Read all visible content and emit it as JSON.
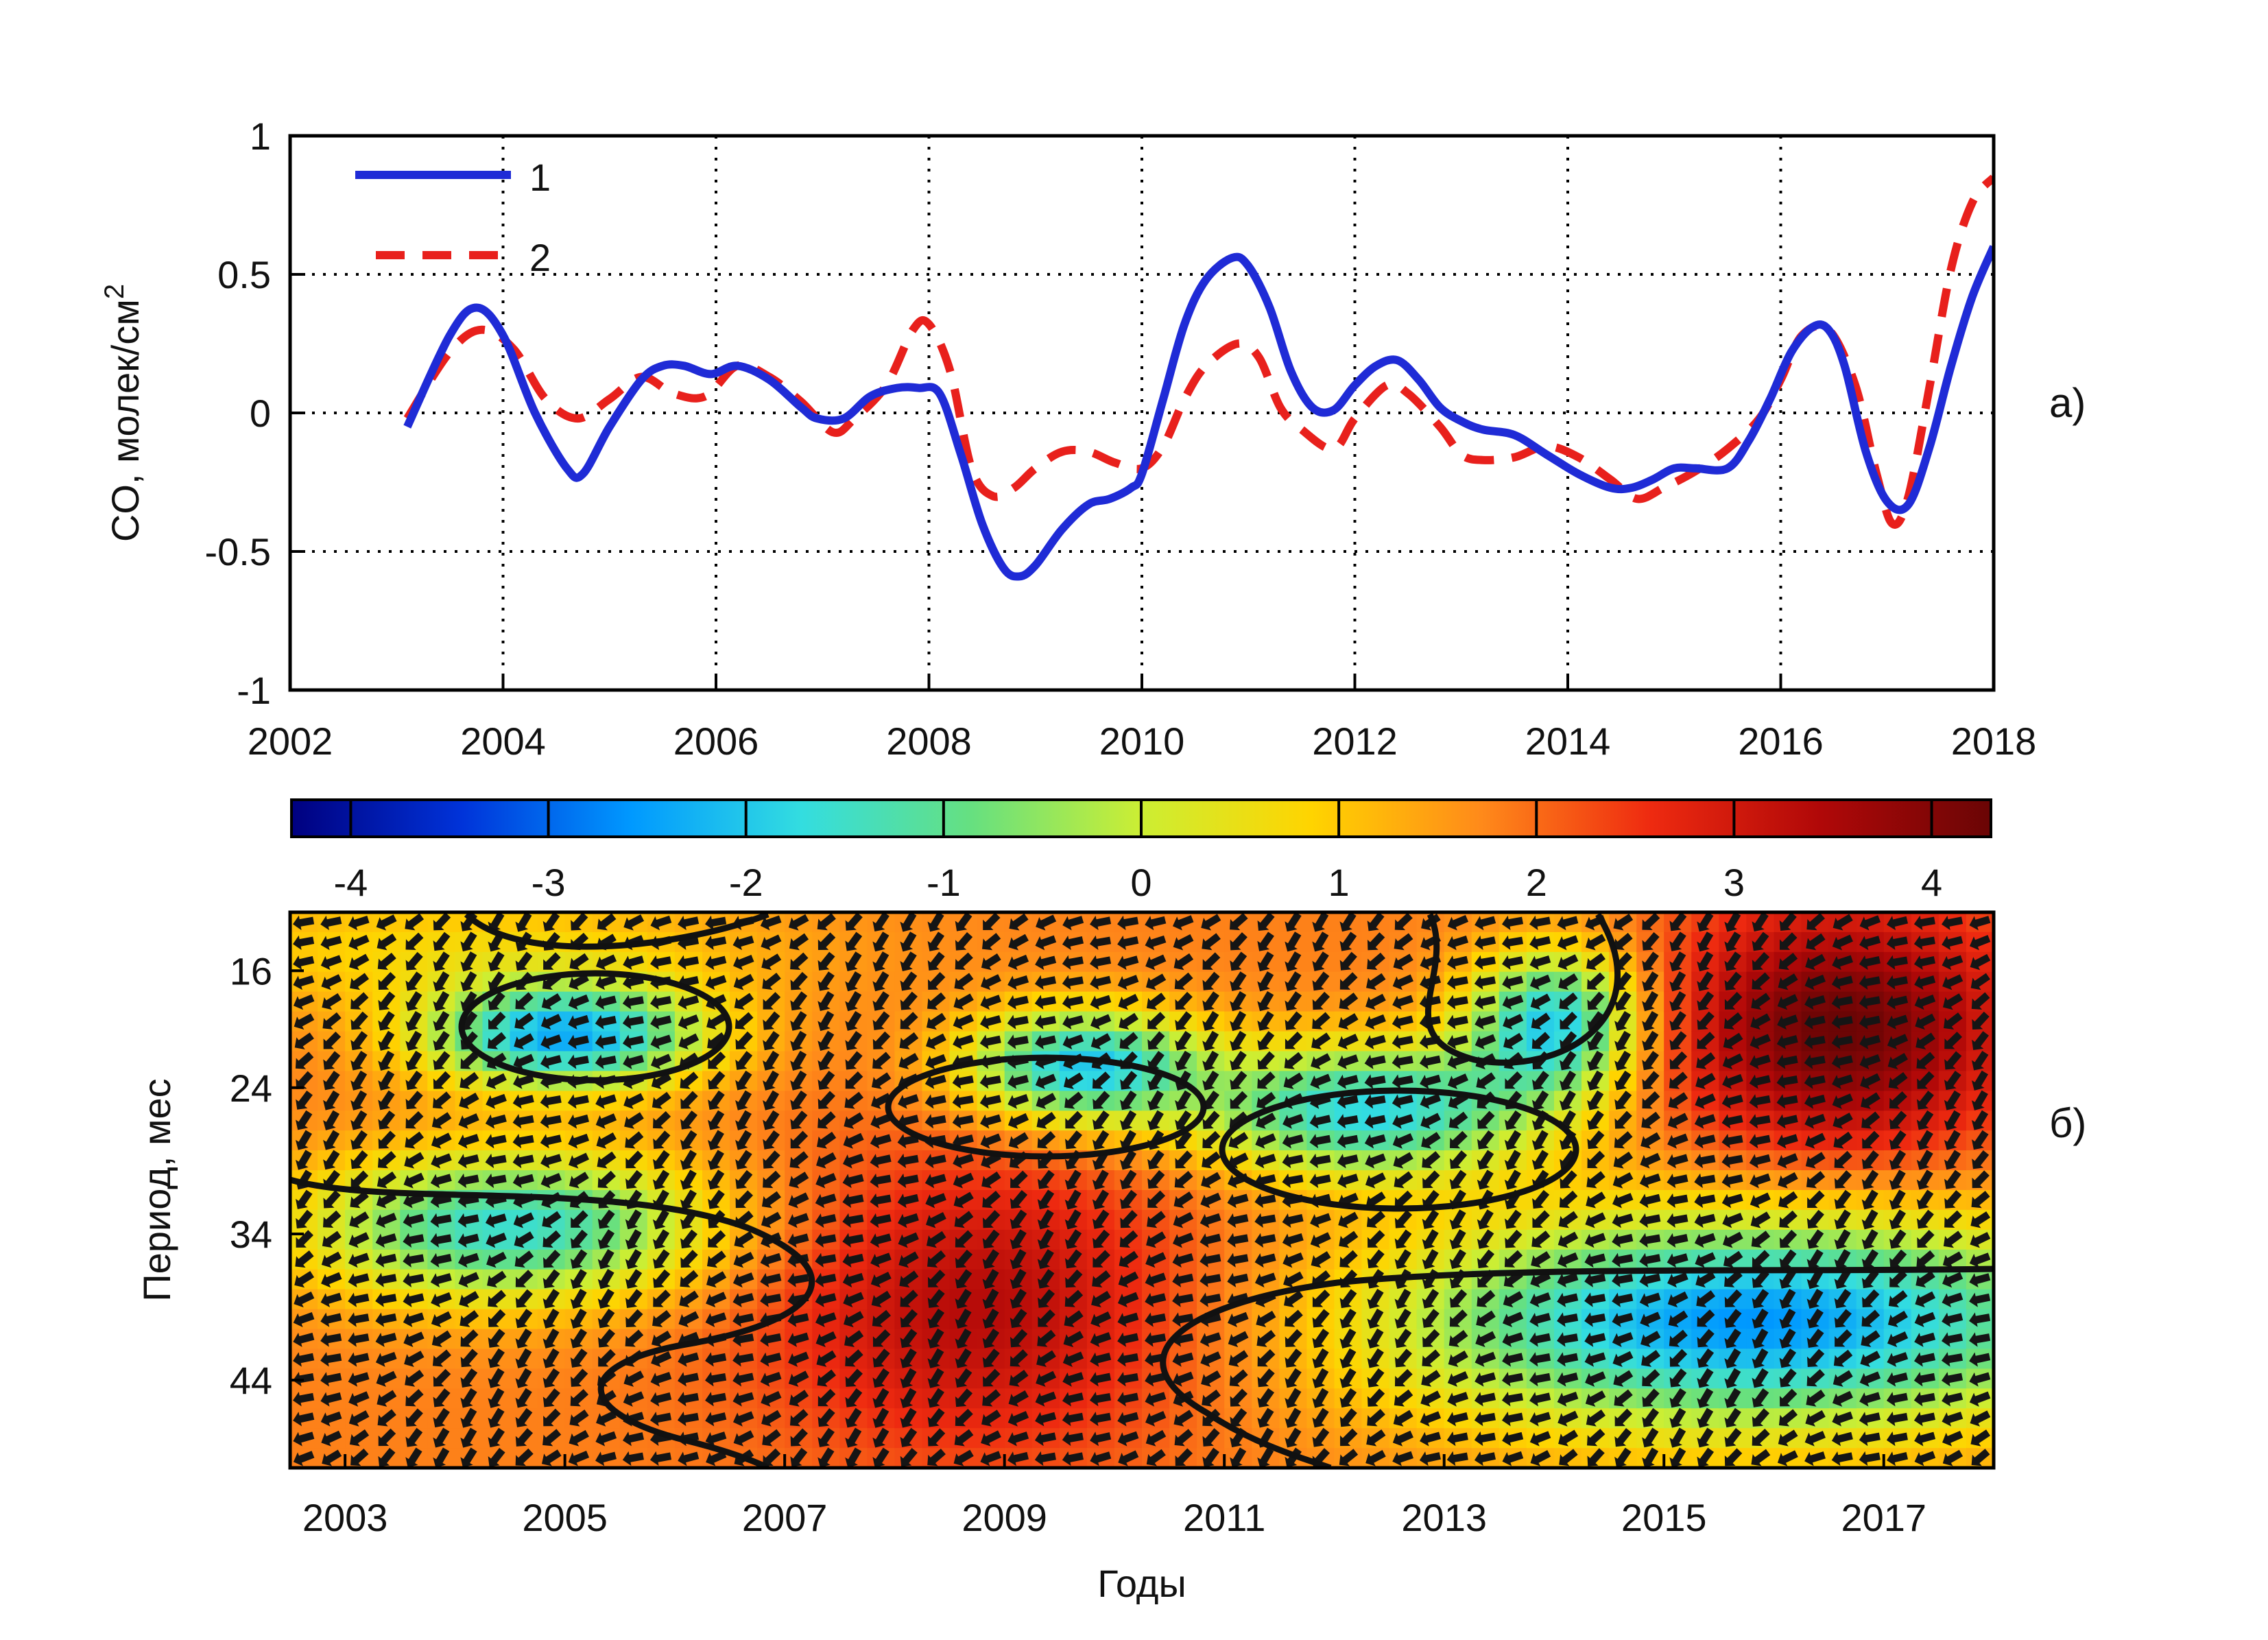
{
  "chart_data": [
    {
      "id": "a",
      "type": "line",
      "panel_label": "а)",
      "xlabel": "",
      "ylabel": "CO, молек/см",
      "ylabel_superscript": "2",
      "xlim": [
        2002,
        2018
      ],
      "ylim": [
        -1,
        1
      ],
      "xticks": [
        2002,
        2004,
        2006,
        2008,
        2010,
        2012,
        2014,
        2016,
        2018
      ],
      "yticks": [
        1,
        0.5,
        0,
        -0.5,
        -1
      ],
      "ytick_labels": [
        "1",
        "0.5",
        "0",
        "-0.5",
        "-1"
      ],
      "grid": true,
      "legend_position": "top-left",
      "series": [
        {
          "name": "1",
          "color": "#1f2bd6",
          "style": "solid",
          "x": [
            2003.1,
            2003.5,
            2003.75,
            2004.0,
            2004.3,
            2004.6,
            2004.75,
            2005.0,
            2005.3,
            2005.5,
            2005.7,
            2005.95,
            2006.2,
            2006.5,
            2006.8,
            2006.95,
            2007.2,
            2007.45,
            2007.7,
            2007.9,
            2008.1,
            2008.3,
            2008.5,
            2008.7,
            2008.85,
            2009.0,
            2009.25,
            2009.5,
            2009.7,
            2009.9,
            2010.0,
            2010.2,
            2010.4,
            2010.6,
            2010.85,
            2011.0,
            2011.2,
            2011.4,
            2011.6,
            2011.8,
            2012.0,
            2012.2,
            2012.4,
            2012.6,
            2012.8,
            2013.0,
            2013.2,
            2013.5,
            2013.8,
            2014.1,
            2014.4,
            2014.6,
            2014.8,
            2015.0,
            2015.2,
            2015.5,
            2015.7,
            2015.9,
            2016.1,
            2016.3,
            2016.45,
            2016.6,
            2016.8,
            2017.0,
            2017.2,
            2017.4,
            2017.6,
            2017.8,
            2018.0
          ],
          "values": [
            -0.05,
            0.28,
            0.38,
            0.28,
            0.0,
            -0.2,
            -0.22,
            -0.05,
            0.12,
            0.17,
            0.17,
            0.14,
            0.17,
            0.12,
            0.02,
            -0.02,
            -0.02,
            0.06,
            0.09,
            0.09,
            0.07,
            -0.15,
            -0.4,
            -0.56,
            -0.59,
            -0.55,
            -0.42,
            -0.33,
            -0.31,
            -0.27,
            -0.22,
            0.05,
            0.32,
            0.48,
            0.56,
            0.53,
            0.38,
            0.15,
            0.02,
            0.01,
            0.1,
            0.17,
            0.19,
            0.12,
            0.02,
            -0.03,
            -0.06,
            -0.08,
            -0.15,
            -0.22,
            -0.27,
            -0.27,
            -0.24,
            -0.2,
            -0.2,
            -0.2,
            -0.1,
            0.05,
            0.22,
            0.31,
            0.3,
            0.17,
            -0.14,
            -0.32,
            -0.33,
            -0.12,
            0.17,
            0.42,
            0.6
          ]
        },
        {
          "name": "2",
          "color": "#e8201c",
          "style": "dashed",
          "x": [
            2003.1,
            2003.5,
            2003.8,
            2004.1,
            2004.4,
            2004.7,
            2005.0,
            2005.3,
            2005.6,
            2005.9,
            2006.2,
            2006.5,
            2006.8,
            2007.1,
            2007.3,
            2007.6,
            2007.85,
            2008.0,
            2008.2,
            2008.4,
            2008.6,
            2008.8,
            2009.0,
            2009.25,
            2009.5,
            2009.75,
            2010.0,
            2010.2,
            2010.4,
            2010.6,
            2010.9,
            2011.1,
            2011.3,
            2011.5,
            2011.8,
            2012.0,
            2012.3,
            2012.5,
            2012.8,
            2013.0,
            2013.2,
            2013.5,
            2013.8,
            2014.1,
            2014.4,
            2014.65,
            2014.9,
            2015.2,
            2015.5,
            2015.8,
            2016.0,
            2016.2,
            2016.45,
            2016.7,
            2016.9,
            2017.05,
            2017.2,
            2017.4,
            2017.6,
            2017.8,
            2018.0
          ],
          "values": [
            -0.02,
            0.22,
            0.3,
            0.23,
            0.05,
            -0.02,
            0.05,
            0.13,
            0.07,
            0.06,
            0.17,
            0.13,
            0.04,
            -0.07,
            -0.02,
            0.1,
            0.3,
            0.32,
            0.15,
            -0.2,
            -0.3,
            -0.27,
            -0.2,
            -0.14,
            -0.14,
            -0.18,
            -0.2,
            -0.12,
            0.05,
            0.17,
            0.25,
            0.2,
            0.02,
            -0.06,
            -0.13,
            -0.02,
            0.1,
            0.07,
            -0.05,
            -0.15,
            -0.17,
            -0.16,
            -0.12,
            -0.16,
            -0.24,
            -0.31,
            -0.27,
            -0.21,
            -0.13,
            -0.02,
            0.12,
            0.28,
            0.3,
            0.1,
            -0.22,
            -0.4,
            -0.3,
            0.1,
            0.52,
            0.76,
            0.85
          ]
        }
      ]
    },
    {
      "id": "b",
      "type": "heatmap",
      "panel_label": "б)",
      "xlabel": "Годы",
      "ylabel": "Период, мес",
      "xlim": [
        2002.5,
        2018
      ],
      "ylim": [
        12,
        50
      ],
      "xticks": [
        2003,
        2005,
        2007,
        2009,
        2011,
        2013,
        2015,
        2017
      ],
      "yticks": [
        16,
        24,
        34,
        44
      ],
      "colorbar": {
        "min": -4.3,
        "max": 4.3,
        "ticks": [
          -4,
          -3,
          -2,
          -1,
          0,
          1,
          2,
          3,
          4
        ],
        "colors": [
          "#00007f",
          "#0033d9",
          "#0099ff",
          "#33dde0",
          "#66e080",
          "#ccee33",
          "#ffd400",
          "#ff8a1a",
          "#ee2a10",
          "#b00808",
          "#6a0505"
        ]
      },
      "background_value": 1.8,
      "grid_columns": 62,
      "grid_rows": 28,
      "features": [
        {
          "x": 2005.0,
          "period": 20.5,
          "sx": 0.9,
          "sy": 2.5,
          "amp": -4.1
        },
        {
          "x": 2009.7,
          "period": 22.5,
          "sx": 0.75,
          "sy": 2.7,
          "amp": -3.8
        },
        {
          "x": 2012.3,
          "period": 25.5,
          "sx": 1.1,
          "sy": 3.2,
          "amp": -3.6
        },
        {
          "x": 2014.0,
          "period": 19.5,
          "sx": 0.55,
          "sy": 3.5,
          "amp": -3.7
        },
        {
          "x": 2004.5,
          "period": 33.5,
          "sx": 1.3,
          "sy": 3.6,
          "amp": -3.4
        },
        {
          "x": 2015.8,
          "period": 40.0,
          "sx": 2.3,
          "sy": 5.2,
          "amp": -4.4
        },
        {
          "x": 2008.8,
          "period": 39.0,
          "sx": 1.4,
          "sy": 7.0,
          "amp": 1.6
        },
        {
          "x": 2016.6,
          "period": 20.0,
          "sx": 1.1,
          "sy": 6.0,
          "amp": 2.5
        },
        {
          "x": 2004.0,
          "period": 14.5,
          "sx": 2.2,
          "sy": 3.0,
          "amp": -1.0
        }
      ]
    }
  ]
}
